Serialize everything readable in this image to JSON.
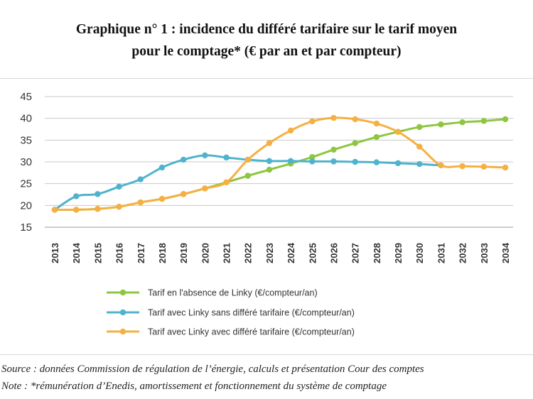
{
  "title_line1": "Graphique n° 1 : incidence du différé tarifaire sur le tarif moyen",
  "title_line2": "pour le comptage* (€ par an et par compteur)",
  "source": "Source : données Commission de régulation de l’énergie, calculs et présentation Cour des comptes",
  "note": "Note : *rémunération d’Enedis, amortissement et fonctionnement du système de comptage",
  "chart_data": {
    "type": "line",
    "ylim": [
      15,
      45
    ],
    "yticks": [
      15,
      20,
      25,
      30,
      35,
      40,
      45
    ],
    "grid": true,
    "legend_position": "bottom",
    "categories": [
      "2013",
      "2014",
      "2015",
      "2016",
      "2017",
      "2018",
      "2019",
      "2020",
      "2021",
      "2022",
      "2023",
      "2024",
      "2025",
      "2026",
      "2027",
      "2028",
      "2029",
      "2030",
      "2031",
      "2032",
      "2033",
      "2034"
    ],
    "series": [
      {
        "name": "Tarif en l'absence de Linky (€/compteur/an)",
        "color": "#8dc63f",
        "values": [
          19,
          19,
          19.2,
          19.7,
          20.7,
          21.5,
          22.6,
          23.9,
          25.3,
          26.8,
          28.2,
          29.6,
          31.1,
          32.8,
          34.3,
          35.7,
          36.9,
          38.0,
          38.6,
          39.1,
          39.4,
          39.8
        ]
      },
      {
        "name": "Tarif avec Linky sans différé tarifaire (€/compteur/an)",
        "color": "#4fb3cc",
        "values": [
          19,
          22.1,
          22.6,
          24.3,
          26.0,
          28.7,
          30.5,
          31.5,
          31.0,
          30.5,
          30.2,
          30.2,
          30.1,
          30.1,
          30.0,
          29.9,
          29.7,
          29.5,
          29.2,
          null,
          null,
          null
        ]
      },
      {
        "name": "Tarif avec Linky avec différé tarifaire (€/compteur/an)",
        "color": "#f5b041",
        "values": [
          19,
          19,
          19.2,
          19.7,
          20.7,
          21.5,
          22.6,
          23.9,
          25.3,
          30.5,
          34.3,
          37.2,
          39.3,
          40.1,
          39.8,
          38.8,
          36.9,
          33.5,
          29.2,
          29.0,
          28.9,
          28.7
        ]
      }
    ]
  }
}
